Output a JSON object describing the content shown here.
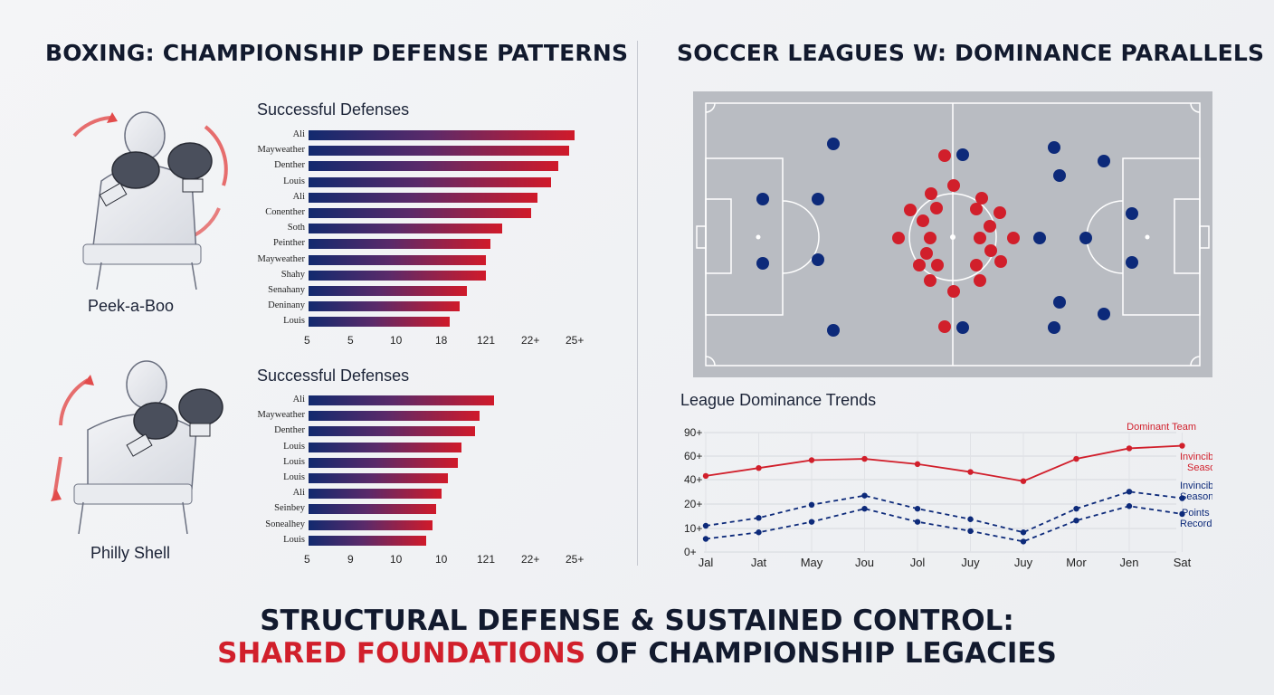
{
  "left_title": "BOXING: CHAMPIONSHIP DEFENSE PATTERNS",
  "right_title": "SOCCER LEAGUES W: DOMINANCE PARALLELS",
  "styles": [
    "Peek-a-Boo",
    "Philly Shell"
  ],
  "footer": {
    "line1": "STRUCTURAL DEFENSE & SUSTAINED CONTROL:",
    "line2_highlight": "SHARED FOUNDATIONS",
    "line2_rest": " OF CHAMPIONSHIP LEGACIES"
  },
  "colors": {
    "red": "#d11f2b",
    "navy": "#0d2a7a",
    "dark": "#121a2e"
  },
  "chart_data": [
    {
      "type": "bar",
      "orientation": "horizontal",
      "title": "Successful Defenses",
      "categories": [
        "Ali",
        "Mayweather",
        "Denther",
        "Louis",
        "Ali",
        "Conenther",
        "Soth",
        "Peinther",
        "Mayweather",
        "Shahy",
        "Senahany",
        "Deninany",
        "Louis"
      ],
      "values": [
        25,
        24.5,
        23.5,
        22.8,
        21.5,
        20.9,
        18.2,
        17.1,
        16.7,
        16.7,
        14.9,
        14.2,
        13.3
      ],
      "x_tick_labels": [
        "5",
        "5",
        "10",
        "18",
        "121",
        "22+",
        "25+"
      ]
    },
    {
      "type": "bar",
      "orientation": "horizontal",
      "title": "Successful Defenses",
      "categories": [
        "Ali",
        "Mayweather",
        "Denther",
        "Louis",
        "Louis",
        "Louis",
        "Ali",
        "Seinbey",
        "Sonealhey",
        "Louis"
      ],
      "values": [
        19.8,
        18.3,
        17.8,
        16.3,
        15.9,
        14.9,
        14.2,
        13.6,
        13.2,
        12.6
      ],
      "x_tick_labels": [
        "5",
        "9",
        "10",
        "10",
        "121",
        "22+",
        "25+"
      ]
    },
    {
      "type": "scatter",
      "title": "",
      "series": [
        {
          "color": "#0d2a7a",
          "points": [
            [
              921,
              159
            ],
            [
              1064,
              171
            ],
            [
              1165,
              163
            ],
            [
              1220,
              178
            ],
            [
              1171,
              194
            ],
            [
              843,
              220
            ],
            [
              904,
              220
            ],
            [
              1251,
              236
            ],
            [
              1149,
              263
            ],
            [
              1200,
              263
            ],
            [
              843,
              291
            ],
            [
              904,
              287
            ],
            [
              1251,
              290
            ],
            [
              1171,
              334
            ],
            [
              1220,
              347
            ],
            [
              921,
              365
            ],
            [
              1064,
              362
            ],
            [
              1165,
              362
            ]
          ]
        },
        {
          "color": "#d11f2b",
          "points": [
            [
              1044,
              172
            ],
            [
              1054,
              205
            ],
            [
              1029,
              214
            ],
            [
              1085,
              219
            ],
            [
              1035,
              230
            ],
            [
              1006,
              232
            ],
            [
              1079,
              231
            ],
            [
              1020,
              244
            ],
            [
              1094,
              250
            ],
            [
              1105,
              235
            ],
            [
              993,
              263
            ],
            [
              1028,
              263
            ],
            [
              1083,
              263
            ],
            [
              1120,
              263
            ],
            [
              1024,
              280
            ],
            [
              1095,
              277
            ],
            [
              1016,
              293
            ],
            [
              1036,
              293
            ],
            [
              1079,
              293
            ],
            [
              1106,
              289
            ],
            [
              1028,
              310
            ],
            [
              1083,
              310
            ],
            [
              1054,
              322
            ],
            [
              1044,
              361
            ]
          ]
        }
      ]
    },
    {
      "type": "line",
      "title": "League Dominance Trends",
      "categories": [
        "Jal",
        "Jat",
        "May",
        "Jou",
        "Jol",
        "Juy",
        "Juy",
        "Mor",
        "Jen",
        "Sat"
      ],
      "y_tick_labels": [
        "0+",
        "10+",
        "20+",
        "40+",
        "60+",
        "90+"
      ],
      "series": [
        {
          "name": "Dominant Team",
          "values": [
            58,
            64,
            70,
            71,
            67,
            61,
            54,
            71,
            79,
            81
          ]
        },
        {
          "name": "Invincibles Season",
          "values": [
            20,
            26,
            36,
            43,
            33,
            25,
            15,
            33,
            46,
            41
          ]
        },
        {
          "name": "Invincibles Season",
          "values": [
            10,
            15,
            23,
            33,
            23,
            16,
            8,
            24,
            35,
            29
          ]
        }
      ],
      "extra_legend": "Points Record"
    }
  ]
}
